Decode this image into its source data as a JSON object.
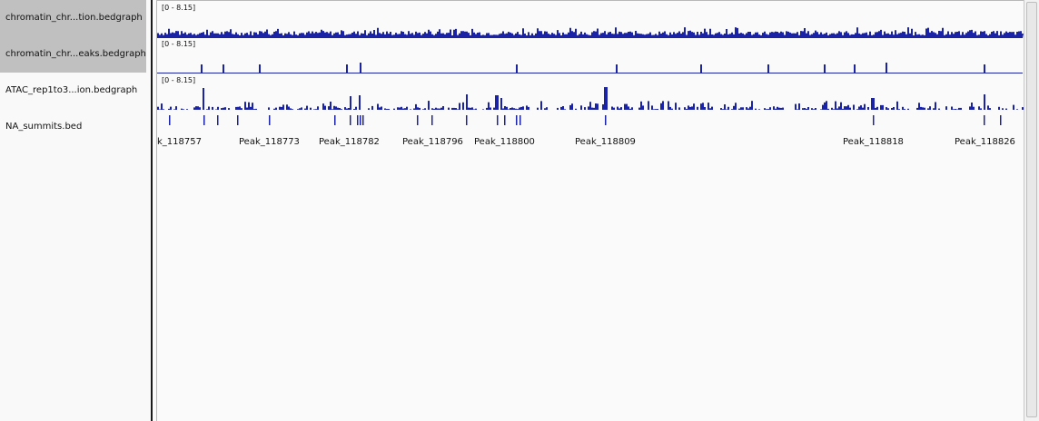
{
  "tracks": [
    {
      "name": "chromatin_chr...tion.bedgraph",
      "selected": true,
      "range": "[0 - 8.15]"
    },
    {
      "name": "chromatin_chr...eaks.bedgraph",
      "selected": true,
      "range": "[0 - 8.15]"
    },
    {
      "name": "ATAC_rep1to3...ion.bedgraph",
      "selected": false,
      "range": "[0 - 8.15]"
    },
    {
      "name": "NA_summits.bed",
      "selected": false
    }
  ],
  "feature_labels": [
    "k_118757",
    "Peak_118773",
    "Peak_118782",
    "Peak_118796",
    "Peak_118800",
    "Peak_118809",
    "Peak_118818",
    "Peak_118826"
  ],
  "colors": {
    "signal": "#1a22a6",
    "selection": "#c0c0c0"
  }
}
